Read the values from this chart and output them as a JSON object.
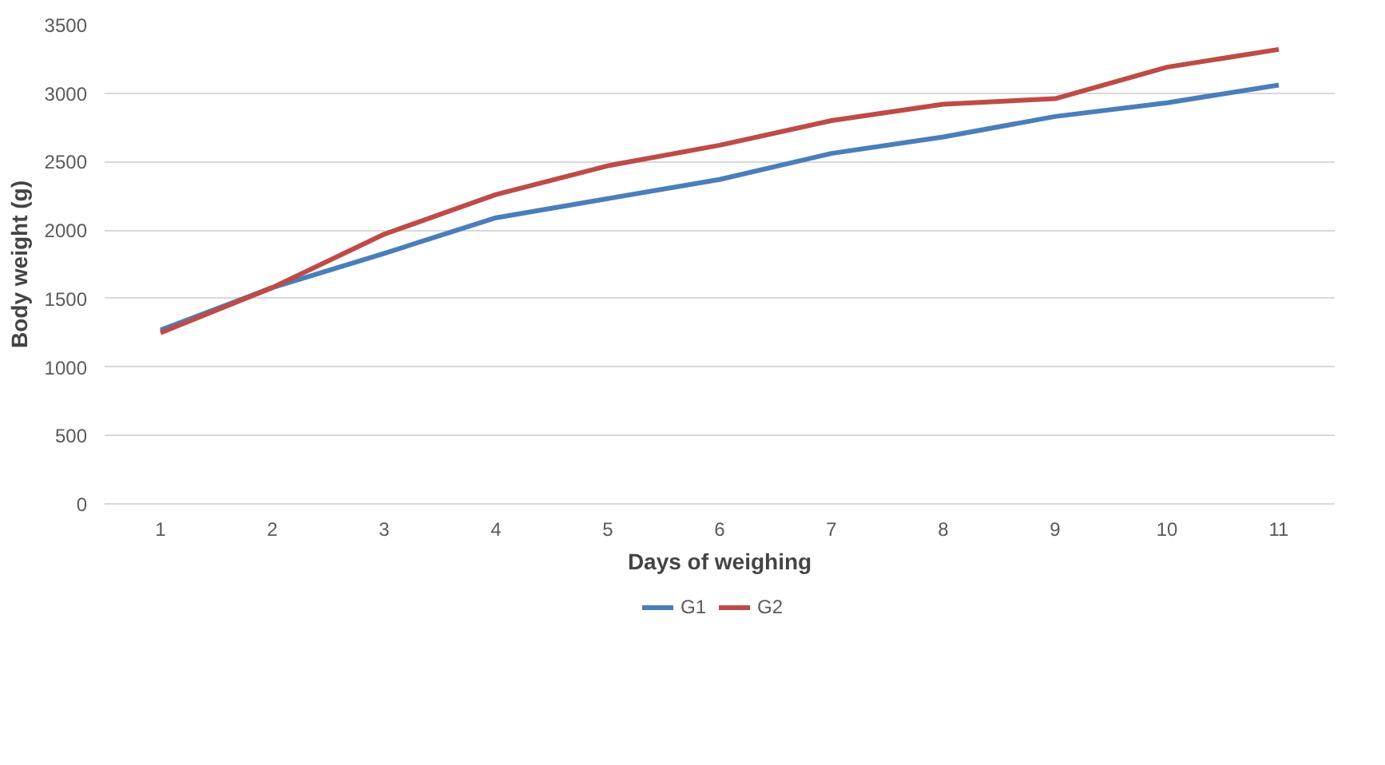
{
  "chart_data": {
    "type": "line",
    "xlabel": "Days of weighing",
    "ylabel": "Body weight (g)",
    "categories": [
      "1",
      "2",
      "3",
      "4",
      "5",
      "6",
      "7",
      "8",
      "9",
      "10",
      "11"
    ],
    "series": [
      {
        "name": "G1",
        "color": "#4a7ebb",
        "values": [
          1270,
          1580,
          1830,
          2090,
          2230,
          2370,
          2560,
          2680,
          2830,
          2930,
          3060
        ]
      },
      {
        "name": "G2",
        "color": "#be4b48",
        "values": [
          1250,
          1580,
          1970,
          2260,
          2470,
          2620,
          2800,
          2920,
          2960,
          3190,
          3320
        ]
      }
    ],
    "ylim": [
      0,
      3500
    ],
    "yticks": [
      0,
      500,
      1000,
      1500,
      2000,
      2500,
      3000,
      3500
    ],
    "grid": "y",
    "legend": "bottom",
    "marker": "none",
    "line_style": "solid"
  }
}
